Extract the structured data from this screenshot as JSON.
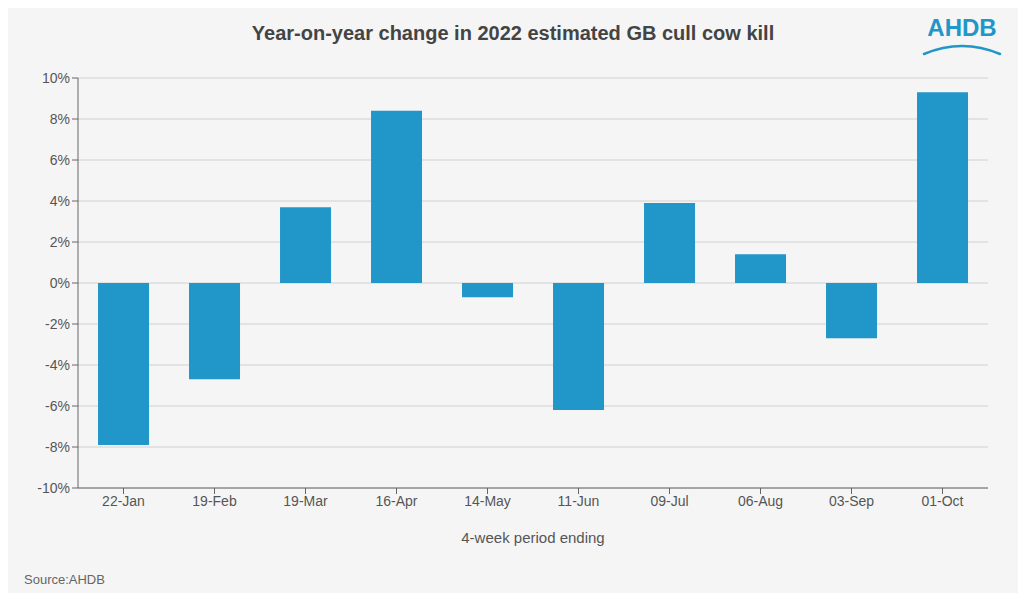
{
  "chart_data": {
    "type": "bar",
    "title": "Year-on-year change in 2022 estimated GB cull cow kill",
    "xlabel": "4-week period ending",
    "categories": [
      "22-Jan",
      "19-Feb",
      "19-Mar",
      "16-Apr",
      "14-May",
      "11-Jun",
      "09-Jul",
      "06-Aug",
      "03-Sep",
      "01-Oct"
    ],
    "values": [
      -7.9,
      -4.7,
      3.7,
      8.4,
      -0.7,
      -6.2,
      3.9,
      1.4,
      -2.7,
      9.3
    ],
    "color": "#2196C8",
    "ylim": [
      -10,
      10
    ],
    "yticks": [
      {
        "value": -10,
        "label": "-10%"
      },
      {
        "value": -8,
        "label": "-8%"
      },
      {
        "value": -6,
        "label": "-6%"
      },
      {
        "value": -4,
        "label": "-4%"
      },
      {
        "value": -2,
        "label": "-2%"
      },
      {
        "value": 0,
        "label": "0%"
      },
      {
        "value": 2,
        "label": "2%"
      },
      {
        "value": 4,
        "label": "4%"
      },
      {
        "value": 6,
        "label": "6%"
      },
      {
        "value": 8,
        "label": "8%"
      },
      {
        "value": 10,
        "label": "10%"
      }
    ],
    "grid": true,
    "annotations": [
      "Source:AHDB",
      "AHDB"
    ]
  }
}
